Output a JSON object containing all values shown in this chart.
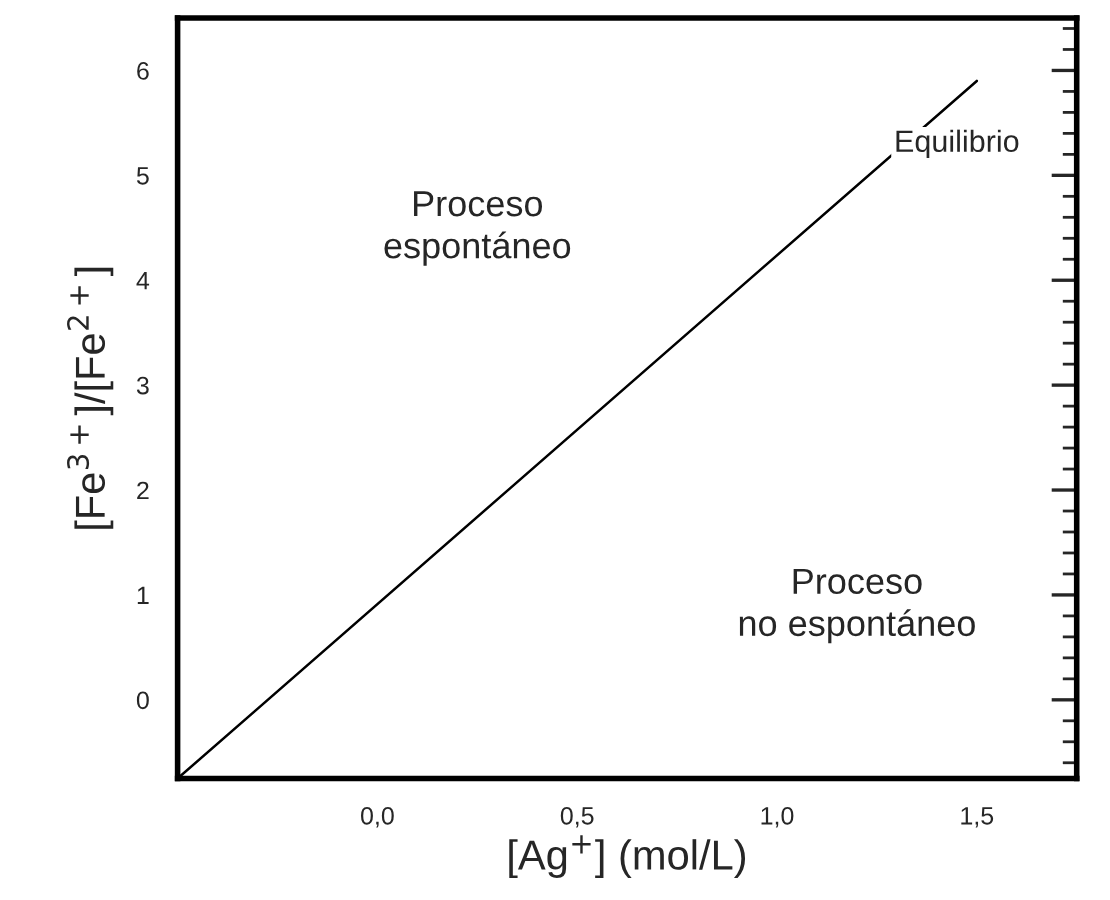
{
  "chart_data": {
    "type": "line",
    "xlabel": "[Ag$^{+}$] (mol/L)",
    "ylabel": "[Fe$^{3+}$]/[Fe$^{2+}$]",
    "x": [
      -0.5,
      1.5
    ],
    "series": [
      {
        "color": "#000000",
        "values": [
          -0.75,
          5.9
        ]
      }
    ],
    "xlim": [
      -0.5,
      1.75
    ],
    "ylim": [
      -0.75,
      6.5
    ],
    "xticks": [
      {
        "value": 0,
        "label": "0,0"
      },
      {
        "value": 0.5,
        "label": "0,5"
      },
      {
        "value": 1,
        "label": "1,0"
      },
      {
        "value": 1.5,
        "label": "1,5"
      }
    ],
    "yticks": [
      0,
      1,
      2,
      3,
      4,
      5,
      6
    ],
    "annotations": [
      "Equilibrio",
      "Proceso\nespontáneo",
      "Proceso\nno espontáneo"
    ],
    "grid": false,
    "legend": false,
    "marker": "none",
    "line_style": "solid"
  }
}
